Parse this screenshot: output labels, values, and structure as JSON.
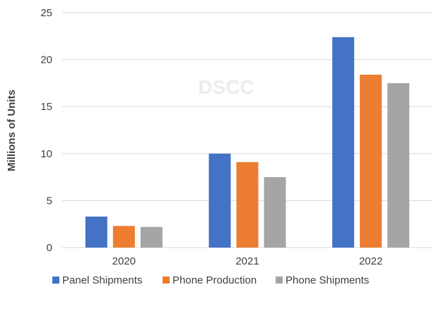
{
  "chart_data": {
    "type": "bar",
    "categories": [
      "2020",
      "2021",
      "2022"
    ],
    "series": [
      {
        "name": "Panel Shipments",
        "color": "#4472C4",
        "values": [
          3.3,
          10.0,
          22.4
        ]
      },
      {
        "name": "Phone Production",
        "color": "#ED7D31",
        "values": [
          2.3,
          9.1,
          18.4
        ]
      },
      {
        "name": "Phone Shipments",
        "color": "#A5A5A5",
        "values": [
          2.2,
          7.5,
          17.5
        ]
      }
    ],
    "title": "",
    "xlabel": "",
    "ylabel": "Millions of Units",
    "ylim": [
      0,
      25
    ],
    "yticks": [
      0,
      5,
      10,
      15,
      20,
      25
    ],
    "grid": true,
    "legend_position": "bottom"
  },
  "watermark": "DSCC"
}
